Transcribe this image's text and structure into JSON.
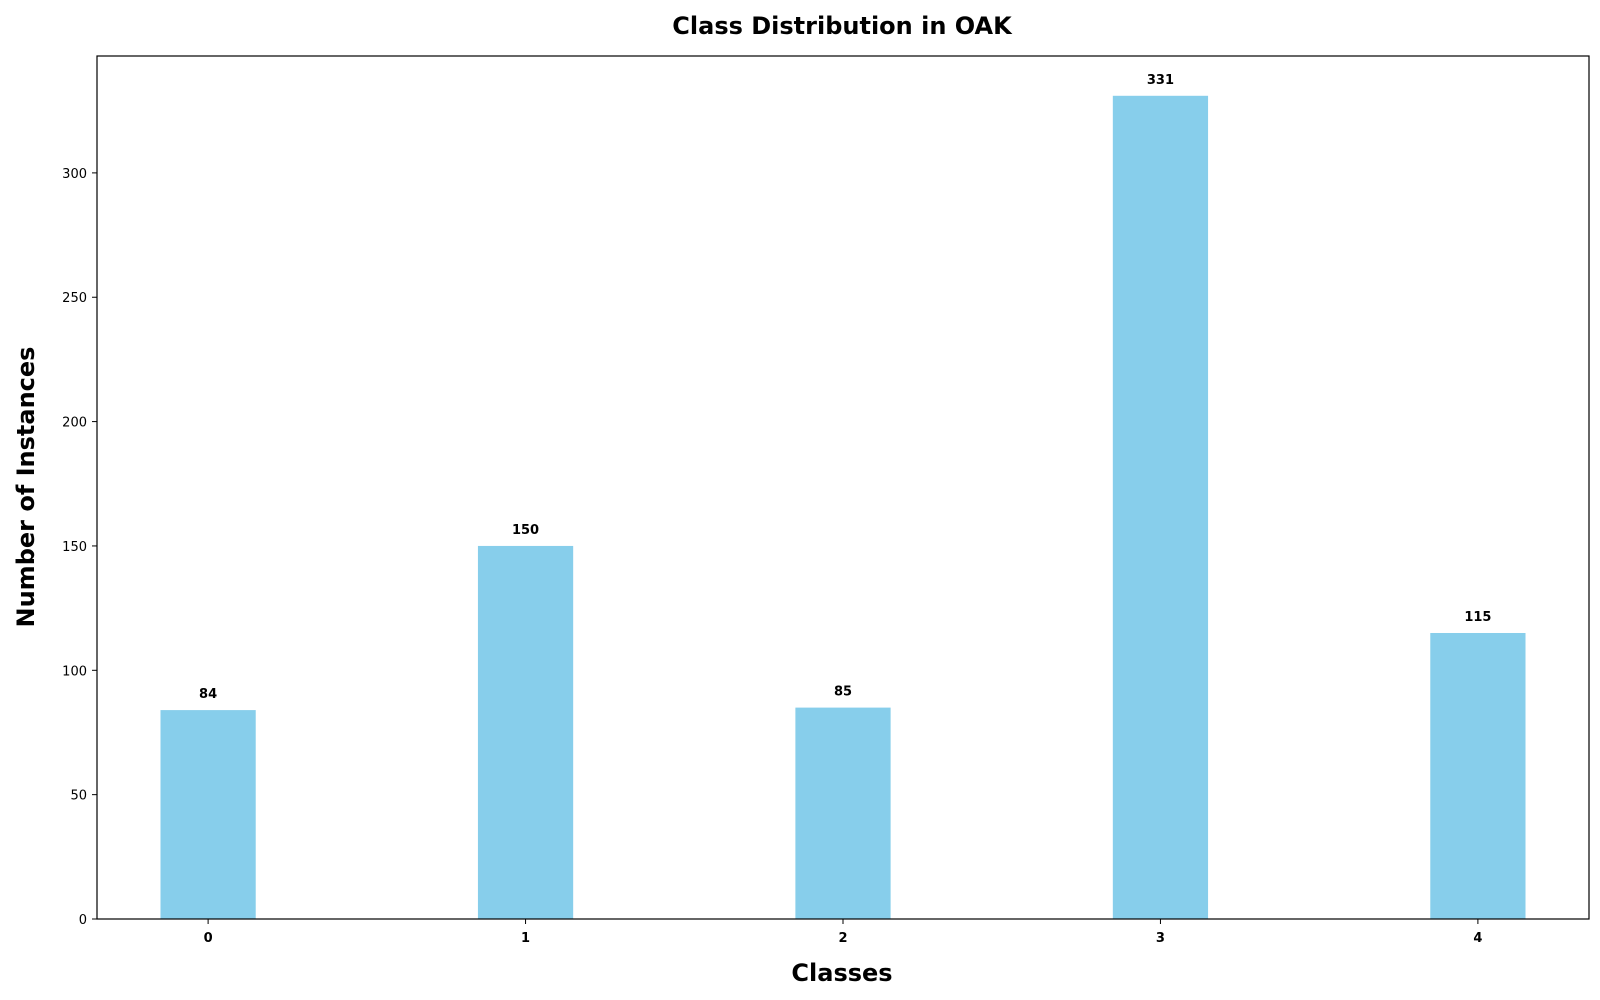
{
  "chart_data": {
    "type": "bar",
    "title": "Class Distribution in OAK",
    "xlabel": "Classes",
    "ylabel": "Number of Instances",
    "categories": [
      "0",
      "1",
      "2",
      "3",
      "4"
    ],
    "values": [
      84,
      150,
      85,
      331,
      115
    ],
    "data_labels": [
      "84",
      "150",
      "85",
      "331",
      "115"
    ],
    "yticks": [
      0,
      50,
      100,
      150,
      200,
      250,
      300
    ],
    "ylim": [
      0,
      347
    ],
    "grid": false,
    "legend": "none",
    "bar_color": "#87CEEB"
  }
}
